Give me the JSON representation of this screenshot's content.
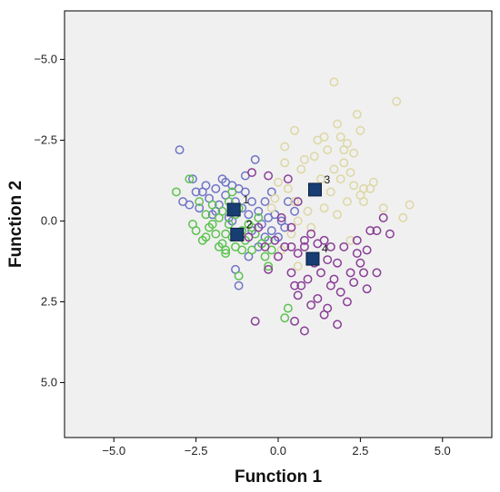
{
  "chart_data": {
    "type": "scatter",
    "title": "",
    "xlabel": "Function 1",
    "ylabel": "Function 2",
    "xlim": [
      -6.5,
      6.5
    ],
    "ylim": [
      -6.7,
      6.5
    ],
    "x_ticks": [
      -5.0,
      -2.5,
      0.0,
      2.5,
      5.0
    ],
    "y_ticks": [
      -5.0,
      -2.5,
      0.0,
      2.5,
      5.0
    ],
    "x_tick_labels": [
      "−5.0",
      "−2.5",
      "0.0",
      "2.5",
      "5.0"
    ],
    "y_tick_labels": [
      "5.0",
      "2.5",
      "0.0",
      "−2.5",
      "−5.0"
    ],
    "grid": false,
    "legend": "none",
    "colors": {
      "background": "#f0f0f0",
      "group1": "#6f74c6",
      "group2": "#5cc24f",
      "group3": "#ddd7a3",
      "group4": "#8a3d97",
      "centroid_fill": "#173d73",
      "centroid_stroke": "#0a1f3e"
    },
    "series": [
      {
        "group": "1",
        "color": "#6f74c6",
        "points": [
          [
            -3.0,
            2.2
          ],
          [
            -2.9,
            0.6
          ],
          [
            -2.6,
            1.3
          ],
          [
            -2.5,
            0.9
          ],
          [
            -2.4,
            0.4
          ],
          [
            -2.2,
            1.1
          ],
          [
            -2.1,
            0.7
          ],
          [
            -2.0,
            0.2
          ],
          [
            -1.9,
            1.0
          ],
          [
            -1.8,
            0.5
          ],
          [
            -1.7,
            1.3
          ],
          [
            -1.6,
            0.8
          ],
          [
            -1.5,
            0.1
          ],
          [
            -1.4,
            1.1
          ],
          [
            -1.3,
            0.6
          ],
          [
            -1.2,
            1.0
          ],
          [
            -1.1,
            0.4
          ],
          [
            -1.0,
            0.9
          ],
          [
            -0.9,
            0.2
          ],
          [
            -0.8,
            0.6
          ],
          [
            -0.7,
            1.9
          ],
          [
            -0.6,
            0.3
          ],
          [
            -0.5,
            -0.1
          ],
          [
            -0.3,
            0.1
          ],
          [
            -0.2,
            -0.3
          ],
          [
            -0.1,
            0.2
          ],
          [
            0.0,
            -0.5
          ],
          [
            0.1,
            0.0
          ],
          [
            -1.3,
            -1.5
          ],
          [
            -1.2,
            -2.0
          ],
          [
            -0.4,
            -0.5
          ],
          [
            -0.8,
            -0.3
          ],
          [
            -1.6,
            1.2
          ],
          [
            -2.3,
            0.9
          ],
          [
            -1.0,
            1.4
          ],
          [
            -0.4,
            0.6
          ],
          [
            -1.9,
            0.3
          ],
          [
            -0.6,
            -0.8
          ],
          [
            -0.2,
            0.9
          ],
          [
            0.2,
            -0.2
          ],
          [
            0.5,
            0.3
          ],
          [
            -2.7,
            0.5
          ],
          [
            -1.4,
            0.0
          ],
          [
            -0.9,
            -1.1
          ],
          [
            0.3,
            0.6
          ]
        ]
      },
      {
        "group": "2",
        "color": "#5cc24f",
        "points": [
          [
            -3.1,
            0.9
          ],
          [
            -2.7,
            1.3
          ],
          [
            -2.6,
            -0.1
          ],
          [
            -2.5,
            -0.3
          ],
          [
            -2.4,
            0.6
          ],
          [
            -2.3,
            -0.6
          ],
          [
            -2.2,
            0.2
          ],
          [
            -2.1,
            -0.2
          ],
          [
            -2.0,
            0.5
          ],
          [
            -1.9,
            -0.4
          ],
          [
            -1.8,
            0.1
          ],
          [
            -1.7,
            -0.7
          ],
          [
            -1.7,
            0.3
          ],
          [
            -1.6,
            -0.9
          ],
          [
            -1.5,
            -0.1
          ],
          [
            -1.5,
            0.6
          ],
          [
            -1.4,
            -0.5
          ],
          [
            -1.3,
            -0.8
          ],
          [
            -1.3,
            0.2
          ],
          [
            -1.2,
            -1.7
          ],
          [
            -1.1,
            -0.3
          ],
          [
            -1.0,
            -0.6
          ],
          [
            -0.9,
            -0.1
          ],
          [
            -0.8,
            -0.9
          ],
          [
            -0.7,
            -0.4
          ],
          [
            -0.6,
            0.1
          ],
          [
            -0.5,
            -0.7
          ],
          [
            -0.3,
            -0.6
          ],
          [
            -0.2,
            -0.9
          ],
          [
            -0.3,
            -1.4
          ],
          [
            0.3,
            -2.7
          ],
          [
            0.2,
            -3.0
          ],
          [
            -1.8,
            -0.8
          ],
          [
            -1.6,
            -1.0
          ],
          [
            -2.0,
            -0.1
          ],
          [
            -1.1,
            -0.9
          ],
          [
            -1.4,
            0.9
          ],
          [
            -0.8,
            -0.2
          ],
          [
            -2.2,
            -0.5
          ],
          [
            -1.2,
            0.4
          ],
          [
            -0.4,
            -1.1
          ],
          [
            -1.6,
            -0.4
          ]
        ]
      },
      {
        "group": "3",
        "color": "#ddd7a3",
        "points": [
          [
            1.7,
            4.3
          ],
          [
            3.6,
            3.7
          ],
          [
            2.4,
            3.3
          ],
          [
            1.8,
            3.0
          ],
          [
            0.5,
            2.8
          ],
          [
            1.2,
            2.5
          ],
          [
            1.4,
            2.6
          ],
          [
            1.9,
            2.6
          ],
          [
            2.1,
            2.4
          ],
          [
            2.5,
            2.8
          ],
          [
            0.2,
            2.3
          ],
          [
            1.5,
            2.2
          ],
          [
            2.0,
            2.2
          ],
          [
            2.3,
            2.1
          ],
          [
            0.8,
            1.9
          ],
          [
            2.0,
            1.8
          ],
          [
            1.7,
            1.6
          ],
          [
            2.2,
            1.5
          ],
          [
            0.2,
            1.8
          ],
          [
            1.9,
            1.3
          ],
          [
            2.3,
            1.1
          ],
          [
            2.6,
            1.0
          ],
          [
            2.8,
            1.0
          ],
          [
            2.5,
            0.8
          ],
          [
            1.6,
            0.9
          ],
          [
            2.1,
            0.6
          ],
          [
            1.4,
            0.4
          ],
          [
            2.6,
            0.6
          ],
          [
            3.2,
            0.4
          ],
          [
            3.8,
            0.1
          ],
          [
            4.0,
            0.5
          ],
          [
            0.3,
            1.0
          ],
          [
            0.5,
            0.6
          ],
          [
            0.6,
            0.0
          ],
          [
            0.9,
            0.3
          ],
          [
            1.0,
            -0.2
          ],
          [
            0.4,
            -0.4
          ],
          [
            -0.2,
            0.4
          ],
          [
            -0.1,
            0.7
          ],
          [
            0.0,
            1.2
          ],
          [
            0.1,
            -0.9
          ],
          [
            0.6,
            -1.4
          ],
          [
            2.2,
            -0.6
          ],
          [
            1.8,
            0.2
          ],
          [
            1.3,
            1.3
          ],
          [
            0.7,
            1.6
          ],
          [
            2.9,
            1.2
          ],
          [
            1.1,
            2.0
          ]
        ]
      },
      {
        "group": "4",
        "color": "#8a3d97",
        "points": [
          [
            -0.8,
            1.5
          ],
          [
            -0.3,
            1.4
          ],
          [
            0.3,
            1.3
          ],
          [
            0.6,
            0.6
          ],
          [
            0.1,
            0.1
          ],
          [
            0.4,
            -0.2
          ],
          [
            -0.1,
            -0.6
          ],
          [
            0.2,
            -0.8
          ],
          [
            0.4,
            -0.8
          ],
          [
            0.6,
            -1.0
          ],
          [
            0.8,
            -0.8
          ],
          [
            1.0,
            -0.4
          ],
          [
            1.2,
            -0.7
          ],
          [
            1.4,
            -0.6
          ],
          [
            1.5,
            -1.2
          ],
          [
            1.6,
            -0.8
          ],
          [
            1.8,
            -1.3
          ],
          [
            2.0,
            -0.8
          ],
          [
            2.2,
            -1.6
          ],
          [
            2.4,
            -1.0
          ],
          [
            2.5,
            -1.3
          ],
          [
            2.6,
            -1.6
          ],
          [
            2.7,
            -0.9
          ],
          [
            2.8,
            -0.3
          ],
          [
            3.0,
            -1.6
          ],
          [
            3.0,
            -0.3
          ],
          [
            3.2,
            0.1
          ],
          [
            3.4,
            -0.4
          ],
          [
            0.4,
            -1.6
          ],
          [
            0.5,
            -2.0
          ],
          [
            0.6,
            -2.3
          ],
          [
            0.7,
            -2.0
          ],
          [
            0.9,
            -1.8
          ],
          [
            1.0,
            -2.6
          ],
          [
            1.2,
            -2.4
          ],
          [
            1.3,
            -1.6
          ],
          [
            1.5,
            -2.7
          ],
          [
            1.6,
            -2.0
          ],
          [
            1.8,
            -3.2
          ],
          [
            2.1,
            -2.5
          ],
          [
            2.3,
            -1.9
          ],
          [
            0.8,
            -3.4
          ],
          [
            -0.7,
            -3.1
          ],
          [
            0.5,
            -3.1
          ],
          [
            -0.3,
            -1.5
          ],
          [
            0.0,
            -1.1
          ],
          [
            -0.6,
            -0.2
          ],
          [
            1.9,
            -2.2
          ],
          [
            2.7,
            -2.1
          ],
          [
            1.1,
            -1.3
          ],
          [
            0.8,
            -0.6
          ],
          [
            -0.9,
            -0.5
          ],
          [
            1.7,
            -1.8
          ],
          [
            1.4,
            -2.9
          ],
          [
            2.4,
            -0.6
          ],
          [
            -0.4,
            -0.8
          ]
        ]
      }
    ],
    "centroids": [
      {
        "label": "1",
        "x": -1.35,
        "y": 0.35
      },
      {
        "label": "2",
        "x": -1.25,
        "y": -0.42
      },
      {
        "label": "3",
        "x": 1.12,
        "y": 0.97
      },
      {
        "label": "4",
        "x": 1.05,
        "y": -1.17
      }
    ]
  }
}
